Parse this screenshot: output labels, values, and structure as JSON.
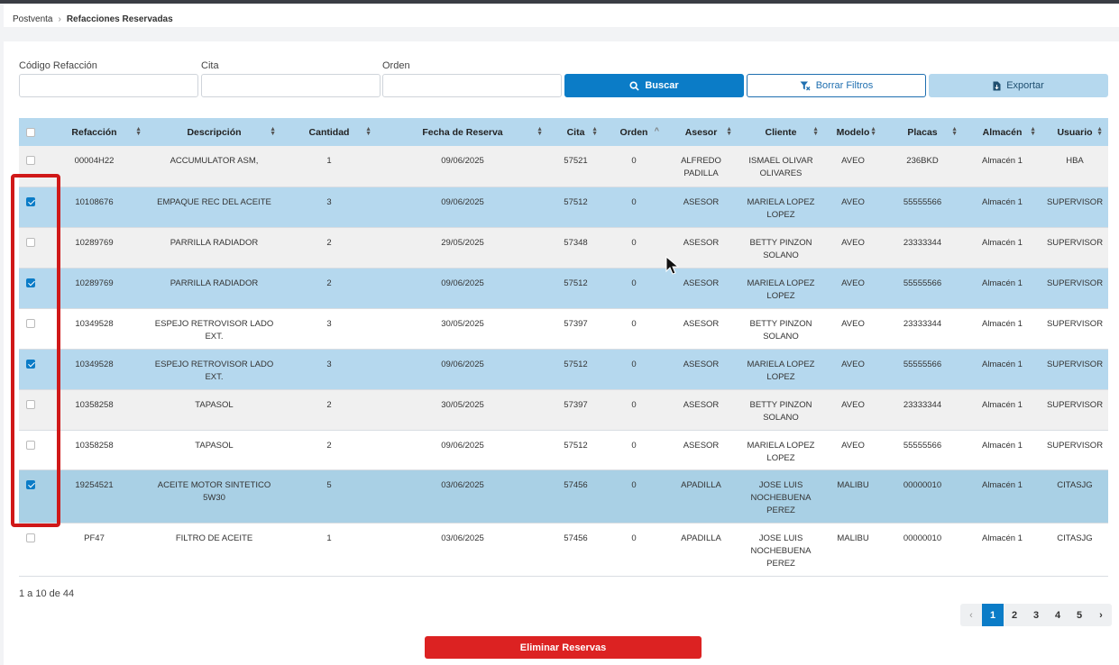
{
  "breadcrumb": {
    "parent": "Postventa",
    "current": "Refacciones Reservadas"
  },
  "filters": {
    "codigo_label": "Código Refacción",
    "cita_label": "Cita",
    "orden_label": "Orden",
    "codigo_value": "",
    "cita_value": "",
    "orden_value": ""
  },
  "buttons": {
    "buscar": "Buscar",
    "borrar": "Borrar Filtros",
    "exportar": "Exportar",
    "eliminar": "Eliminar Reservas"
  },
  "table": {
    "headers": [
      "Refacción",
      "Descripción",
      "Cantidad",
      "Fecha de Reserva",
      "Cita",
      "Orden",
      "Asesor",
      "Cliente",
      "Modelo",
      "Placas",
      "Almacén",
      "Usuario"
    ],
    "rows": [
      {
        "checked": false,
        "refaccion": "00004H22",
        "descripcion": "ACCUMULATOR ASM,",
        "cantidad": "1",
        "fecha": "09/06/2025",
        "cita": "57521",
        "orden": "0",
        "asesor": "ALFREDO PADILLA",
        "cliente": "ISMAEL OLIVAR OLIVARES",
        "modelo": "AVEO",
        "placas": "236BKD",
        "almacen": "Almacén 1",
        "usuario": "HBA"
      },
      {
        "checked": true,
        "refaccion": "10108676",
        "descripcion": "EMPAQUE REC DEL ACEITE",
        "cantidad": "3",
        "fecha": "09/06/2025",
        "cita": "57512",
        "orden": "0",
        "asesor": "ASESOR",
        "cliente": "MARIELA LOPEZ LOPEZ",
        "modelo": "AVEO",
        "placas": "55555566",
        "almacen": "Almacén 1",
        "usuario": "SUPERVISOR"
      },
      {
        "checked": false,
        "refaccion": "10289769",
        "descripcion": "PARRILLA RADIADOR",
        "cantidad": "2",
        "fecha": "29/05/2025",
        "cita": "57348",
        "orden": "0",
        "asesor": "ASESOR",
        "cliente": "BETTY PINZON SOLANO",
        "modelo": "AVEO",
        "placas": "23333344",
        "almacen": "Almacén 1",
        "usuario": "SUPERVISOR"
      },
      {
        "checked": true,
        "refaccion": "10289769",
        "descripcion": "PARRILLA RADIADOR",
        "cantidad": "2",
        "fecha": "09/06/2025",
        "cita": "57512",
        "orden": "0",
        "asesor": "ASESOR",
        "cliente": "MARIELA LOPEZ LOPEZ",
        "modelo": "AVEO",
        "placas": "55555566",
        "almacen": "Almacén 1",
        "usuario": "SUPERVISOR"
      },
      {
        "checked": false,
        "refaccion": "10349528",
        "descripcion": "ESPEJO RETROVISOR LADO EXT.",
        "cantidad": "3",
        "fecha": "30/05/2025",
        "cita": "57397",
        "orden": "0",
        "asesor": "ASESOR",
        "cliente": "BETTY PINZON SOLANO",
        "modelo": "AVEO",
        "placas": "23333344",
        "almacen": "Almacén 1",
        "usuario": "SUPERVISOR"
      },
      {
        "checked": true,
        "refaccion": "10349528",
        "descripcion": "ESPEJO RETROVISOR LADO EXT.",
        "cantidad": "3",
        "fecha": "09/06/2025",
        "cita": "57512",
        "orden": "0",
        "asesor": "ASESOR",
        "cliente": "MARIELA LOPEZ LOPEZ",
        "modelo": "AVEO",
        "placas": "55555566",
        "almacen": "Almacén 1",
        "usuario": "SUPERVISOR"
      },
      {
        "checked": false,
        "refaccion": "10358258",
        "descripcion": "TAPASOL",
        "cantidad": "2",
        "fecha": "30/05/2025",
        "cita": "57397",
        "orden": "0",
        "asesor": "ASESOR",
        "cliente": "BETTY PINZON SOLANO",
        "modelo": "AVEO",
        "placas": "23333344",
        "almacen": "Almacén 1",
        "usuario": "SUPERVISOR"
      },
      {
        "checked": false,
        "refaccion": "10358258",
        "descripcion": "TAPASOL",
        "cantidad": "2",
        "fecha": "09/06/2025",
        "cita": "57512",
        "orden": "0",
        "asesor": "ASESOR",
        "cliente": "MARIELA LOPEZ LOPEZ",
        "modelo": "AVEO",
        "placas": "55555566",
        "almacen": "Almacén 1",
        "usuario": "SUPERVISOR"
      },
      {
        "checked": true,
        "refaccion": "19254521",
        "descripcion": "ACEITE MOTOR SINTETICO 5W30",
        "cantidad": "5",
        "fecha": "03/06/2025",
        "cita": "57456",
        "orden": "0",
        "asesor": "APADILLA",
        "cliente": "JOSE LUIS NOCHEBUENA PEREZ",
        "modelo": "MALIBU",
        "placas": "00000010",
        "almacen": "Almacén 1",
        "usuario": "CITASJG"
      },
      {
        "checked": false,
        "refaccion": "PF47",
        "descripcion": "FILTRO DE ACEITE",
        "cantidad": "1",
        "fecha": "03/06/2025",
        "cita": "57456",
        "orden": "0",
        "asesor": "APADILLA",
        "cliente": "JOSE LUIS NOCHEBUENA PEREZ",
        "modelo": "MALIBU",
        "placas": "00000010",
        "almacen": "Almacén 1",
        "usuario": "CITASJG"
      }
    ]
  },
  "pagination": {
    "info": "1 a 10 de 44",
    "prev": "‹",
    "next": "›",
    "pages": [
      "1",
      "2",
      "3",
      "4",
      "5"
    ],
    "current": "1"
  },
  "colors": {
    "primary": "#0b7cc7",
    "row_selected": "#b5d8ee",
    "danger": "#dc2222",
    "highlight": "#d01818"
  }
}
